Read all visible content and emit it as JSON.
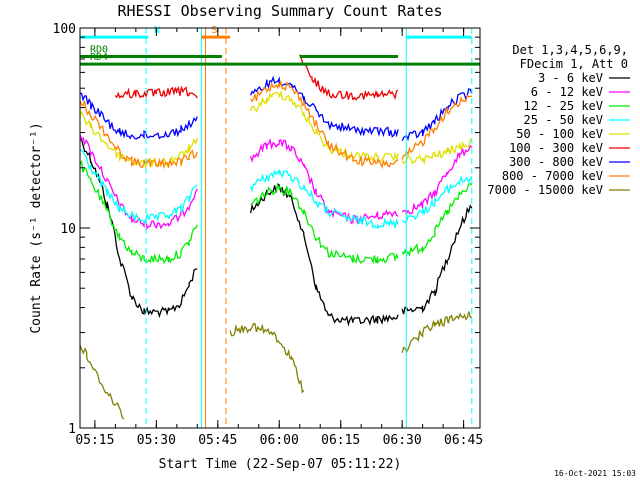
{
  "chart_data": {
    "type": "line",
    "title": "RHESSI Observing Summary Count Rates",
    "xlabel": "Start Time (22-Sep-07 05:11:22)",
    "ylabel": "Count Rate (s⁻¹ detector⁻¹)",
    "y_scale": "log",
    "ylim": [
      1,
      100
    ],
    "xlim": [
      "05:11:22",
      "06:49:00"
    ],
    "x_ticks": [
      "05:15",
      "05:30",
      "05:45",
      "06:00",
      "06:15",
      "06:30",
      "06:45"
    ],
    "y_ticks": [
      "1",
      "10",
      "100"
    ],
    "legend": {
      "placement": "right",
      "header": [
        "Det 1,3,4,5,6,9,",
        "FDecim 1, Att 0"
      ],
      "entries": [
        {
          "label": "3 - 6 keV",
          "color": "#000000"
        },
        {
          "label": "6 - 12 keV",
          "color": "#ff00ff"
        },
        {
          "label": "12 - 25 keV",
          "color": "#00ee00"
        },
        {
          "label": "25 - 50 keV",
          "color": "#00ffff"
        },
        {
          "label": "50 - 100 keV",
          "color": "#e0e000"
        },
        {
          "label": "100 - 300 keV",
          "color": "#ee0000"
        },
        {
          "label": "300 - 800 keV",
          "color": "#0000ff"
        },
        {
          "label": "800 - 7000 keV",
          "color": "#ff8000"
        },
        {
          "label": "7000 - 15000 keV",
          "color": "#808000"
        }
      ]
    },
    "series": [
      {
        "name": "3 - 6 keV",
        "color": "#000000",
        "segments": [
          [
            [
              "05:11:22",
              28
            ],
            [
              "05:14",
              22
            ],
            [
              "05:18",
              13
            ],
            [
              "05:21",
              7
            ],
            [
              "05:24",
              4.5
            ],
            [
              "05:27",
              3.8
            ],
            [
              "05:33",
              3.8
            ],
            [
              "05:36",
              4.2
            ],
            [
              "05:38",
              5.2
            ],
            [
              "05:40",
              6.5
            ]
          ],
          [
            [
              "05:53",
              12
            ],
            [
              "05:57",
              15
            ],
            [
              "06:00",
              16
            ],
            [
              "06:03",
              14
            ],
            [
              "06:06",
              9
            ],
            [
              "06:09",
              5
            ],
            [
              "06:12",
              3.6
            ],
            [
              "06:18",
              3.4
            ],
            [
              "06:24",
              3.5
            ],
            [
              "06:29",
              3.6
            ]
          ],
          [
            [
              "06:30",
              3.8
            ],
            [
              "06:35",
              4
            ],
            [
              "06:38",
              4.8
            ],
            [
              "06:41",
              7
            ],
            [
              "06:44",
              10
            ],
            [
              "06:47",
              13
            ]
          ]
        ]
      },
      {
        "name": "6 - 12 keV",
        "color": "#ff00ff",
        "segments": [
          [
            [
              "05:11:22",
              30
            ],
            [
              "05:14",
              24
            ],
            [
              "05:18",
              17
            ],
            [
              "05:21",
              13
            ],
            [
              "05:24",
              11
            ],
            [
              "05:27",
              10.5
            ],
            [
              "05:33",
              10.5
            ],
            [
              "05:36",
              11.5
            ],
            [
              "05:38",
              13
            ],
            [
              "05:40",
              16
            ]
          ],
          [
            [
              "05:53",
              22
            ],
            [
              "05:57",
              26
            ],
            [
              "06:00",
              27
            ],
            [
              "06:03",
              25
            ],
            [
              "06:06",
              20
            ],
            [
              "06:09",
              15
            ],
            [
              "06:12",
              12
            ],
            [
              "06:18",
              11
            ],
            [
              "06:24",
              11.5
            ],
            [
              "06:29",
              12
            ]
          ],
          [
            [
              "06:30",
              12
            ],
            [
              "06:35",
              13
            ],
            [
              "06:38",
              15
            ],
            [
              "06:41",
              19
            ],
            [
              "06:44",
              23
            ],
            [
              "06:47",
              26
            ]
          ]
        ]
      },
      {
        "name": "12 - 25 keV",
        "color": "#00ee00",
        "segments": [
          [
            [
              "05:11:22",
              21
            ],
            [
              "05:14",
              17
            ],
            [
              "05:18",
              12
            ],
            [
              "05:21",
              9
            ],
            [
              "05:24",
              7.5
            ],
            [
              "05:27",
              7
            ],
            [
              "05:33",
              7
            ],
            [
              "05:36",
              7.5
            ],
            [
              "05:38",
              8.5
            ],
            [
              "05:40",
              10.5
            ]
          ],
          [
            [
              "05:53",
              13
            ],
            [
              "05:57",
              15
            ],
            [
              "06:00",
              16
            ],
            [
              "06:03",
              15
            ],
            [
              "06:06",
              12
            ],
            [
              "06:09",
              9
            ],
            [
              "06:12",
              7.5
            ],
            [
              "06:18",
              7
            ],
            [
              "06:24",
              7
            ],
            [
              "06:29",
              7.2
            ]
          ],
          [
            [
              "06:30",
              7.5
            ],
            [
              "06:35",
              8
            ],
            [
              "06:38",
              9.5
            ],
            [
              "06:41",
              12
            ],
            [
              "06:44",
              14.5
            ],
            [
              "06:47",
              16.5
            ]
          ]
        ]
      },
      {
        "name": "25 - 50 keV",
        "color": "#00ffff",
        "segments": [
          [
            [
              "05:11:22",
              25
            ],
            [
              "05:14",
              20
            ],
            [
              "05:18",
              15
            ],
            [
              "05:21",
              12.5
            ],
            [
              "05:24",
              11.5
            ],
            [
              "05:27",
              11
            ],
            [
              "05:33",
              11.5
            ],
            [
              "05:36",
              12.5
            ],
            [
              "05:38",
              14
            ],
            [
              "05:40",
              17
            ]
          ],
          [
            [
              "05:53",
              16
            ],
            [
              "05:57",
              18
            ],
            [
              "06:00",
              19
            ],
            [
              "06:03",
              18
            ],
            [
              "06:06",
              16
            ],
            [
              "06:09",
              13.5
            ],
            [
              "06:12",
              12
            ],
            [
              "06:18",
              11
            ],
            [
              "06:24",
              10.5
            ],
            [
              "06:29",
              10.5
            ]
          ],
          [
            [
              "06:30",
              11
            ],
            [
              "06:35",
              12
            ],
            [
              "06:38",
              13.5
            ],
            [
              "06:41",
              15.5
            ],
            [
              "06:44",
              17
            ],
            [
              "06:47",
              18
            ]
          ]
        ]
      },
      {
        "name": "50 - 100 keV",
        "color": "#e0e000",
        "segments": [
          [
            [
              "05:11:22",
              37
            ],
            [
              "05:14",
              32
            ],
            [
              "05:18",
              26
            ],
            [
              "05:21",
              23
            ],
            [
              "05:24",
              21.5
            ],
            [
              "05:27",
              21
            ],
            [
              "05:33",
              21.5
            ],
            [
              "05:36",
              23
            ],
            [
              "05:38",
              25
            ],
            [
              "05:40",
              27
            ]
          ],
          [
            [
              "05:53",
              38
            ],
            [
              "05:57",
              44
            ],
            [
              "06:00",
              47
            ],
            [
              "06:03",
              44
            ],
            [
              "06:06",
              37
            ],
            [
              "06:09",
              30
            ],
            [
              "06:12",
              25
            ],
            [
              "06:18",
              23
            ],
            [
              "06:24",
              22.5
            ],
            [
              "06:29",
              22.5
            ]
          ],
          [
            [
              "06:30",
              22
            ],
            [
              "06:35",
              22
            ],
            [
              "06:38",
              23
            ],
            [
              "06:41",
              24
            ],
            [
              "06:44",
              25.5
            ],
            [
              "06:47",
              27
            ]
          ]
        ]
      },
      {
        "name": "100 - 300 keV",
        "color": "#ee0000",
        "segments": [
          [
            [
              "05:20",
              46
            ],
            [
              "05:25",
              47
            ],
            [
              "05:30",
              47
            ],
            [
              "05:35",
              48
            ],
            [
              "05:38",
              48
            ],
            [
              "05:40",
              45
            ]
          ],
          [
            [
              "06:05",
              70
            ],
            [
              "06:08",
              55
            ],
            [
              "06:12",
              47
            ],
            [
              "06:18",
              46
            ],
            [
              "06:24",
              46
            ],
            [
              "06:29",
              47
            ]
          ]
        ]
      },
      {
        "name": "300 - 800 keV",
        "color": "#0000ff",
        "segments": [
          [
            [
              "05:11:22",
              48
            ],
            [
              "05:14",
              41
            ],
            [
              "05:18",
              34
            ],
            [
              "05:21",
              30
            ],
            [
              "05:24",
              29
            ],
            [
              "05:27",
              29
            ],
            [
              "05:33",
              29.5
            ],
            [
              "05:36",
              31
            ],
            [
              "05:38",
              33
            ],
            [
              "05:40",
              36
            ]
          ],
          [
            [
              "05:53",
              45
            ],
            [
              "05:57",
              53
            ],
            [
              "06:00",
              55
            ],
            [
              "06:03",
              52
            ],
            [
              "06:06",
              45
            ],
            [
              "06:09",
              38
            ],
            [
              "06:12",
              33
            ],
            [
              "06:18",
              31
            ],
            [
              "06:24",
              30.5
            ],
            [
              "06:29",
              30
            ]
          ],
          [
            [
              "06:30",
              28
            ],
            [
              "06:35",
              30
            ],
            [
              "06:38",
              34
            ],
            [
              "06:41",
              40
            ],
            [
              "06:44",
              45
            ],
            [
              "06:47",
              48
            ]
          ]
        ]
      },
      {
        "name": "800 - 7000 keV",
        "color": "#ff8000",
        "segments": [
          [
            [
              "05:11:22",
              44
            ],
            [
              "05:14",
              37
            ],
            [
              "05:18",
              29
            ],
            [
              "05:21",
              24
            ],
            [
              "05:24",
              21.5
            ],
            [
              "05:27",
              21
            ],
            [
              "05:33",
              21
            ],
            [
              "05:36",
              21.5
            ],
            [
              "05:38",
              22.5
            ],
            [
              "05:40",
              24
            ]
          ],
          [
            [
              "05:53",
              42
            ],
            [
              "05:57",
              50
            ],
            [
              "06:00",
              53
            ],
            [
              "06:03",
              50
            ],
            [
              "06:06",
              42
            ],
            [
              "06:09",
              33
            ],
            [
              "06:12",
              26
            ],
            [
              "06:18",
              22
            ],
            [
              "06:24",
              21
            ],
            [
              "06:29",
              21
            ]
          ],
          [
            [
              "06:30",
              22
            ],
            [
              "06:35",
              27
            ],
            [
              "06:38",
              32
            ],
            [
              "06:41",
              38
            ],
            [
              "06:44",
              43
            ],
            [
              "06:47",
              46
            ]
          ]
        ]
      },
      {
        "name": "7000 - 15000 keV",
        "color": "#808000",
        "segments": [
          [
            [
              "05:11:22",
              2.6
            ],
            [
              "05:13",
              2.3
            ],
            [
              "05:15",
              1.9
            ],
            [
              "05:18",
              1.5
            ],
            [
              "05:22",
              1.15
            ]
          ],
          [
            [
              "05:48",
              3
            ],
            [
              "05:53",
              3.2
            ],
            [
              "05:58",
              3
            ],
            [
              "06:03",
              2.2
            ],
            [
              "06:06",
              1.5
            ]
          ],
          [
            [
              "06:30",
              2.4
            ],
            [
              "06:35",
              3
            ],
            [
              "06:38",
              3.3
            ],
            [
              "06:42",
              3.5
            ],
            [
              "06:47",
              3.7
            ]
          ]
        ]
      }
    ],
    "flags": [
      {
        "label": "",
        "color": "#00ffff",
        "level": 90,
        "from": "05:11:22",
        "to": "05:27"
      },
      {
        "label": "N",
        "color": "#00ffff",
        "level": 90,
        "from": "05:27",
        "to": "05:28"
      },
      {
        "label": "",
        "color": "#00ffff",
        "level": 90,
        "from": "06:31",
        "to": "06:47"
      },
      {
        "label": "S",
        "color": "#ff8000",
        "level": 90,
        "from": "05:41",
        "to": "05:48"
      },
      {
        "label": "RD0",
        "color": "#008000",
        "level": 72,
        "from": "05:11:22",
        "to": "05:20"
      },
      {
        "label": "RD4",
        "color": "#008000",
        "level": 66,
        "from": "05:11:22",
        "to": "05:46"
      },
      {
        "label": "",
        "color": "#008000",
        "level": 72,
        "from": "05:20",
        "to": "05:46"
      },
      {
        "label": "",
        "color": "#008000",
        "level": 72,
        "from": "06:05",
        "to": "06:29"
      },
      {
        "label": "",
        "color": "#008000",
        "level": 66,
        "from": "05:46",
        "to": "06:49"
      }
    ],
    "vlines": [
      {
        "at": "05:11:22",
        "color": "#00ffff",
        "style": "solid"
      },
      {
        "at": "05:27:30",
        "color": "#00ffff",
        "style": "dashed"
      },
      {
        "at": "05:41",
        "color": "#00ffff",
        "style": "solid"
      },
      {
        "at": "05:42",
        "color": "#ff8000",
        "style": "solid"
      },
      {
        "at": "05:47",
        "color": "#ff8000",
        "style": "dashed"
      },
      {
        "at": "06:31",
        "color": "#00ffff",
        "style": "solid"
      },
      {
        "at": "06:47",
        "color": "#00ffff",
        "style": "dashed"
      }
    ]
  },
  "footer": {
    "timestamp": "16-Oct-2021 15:03"
  }
}
